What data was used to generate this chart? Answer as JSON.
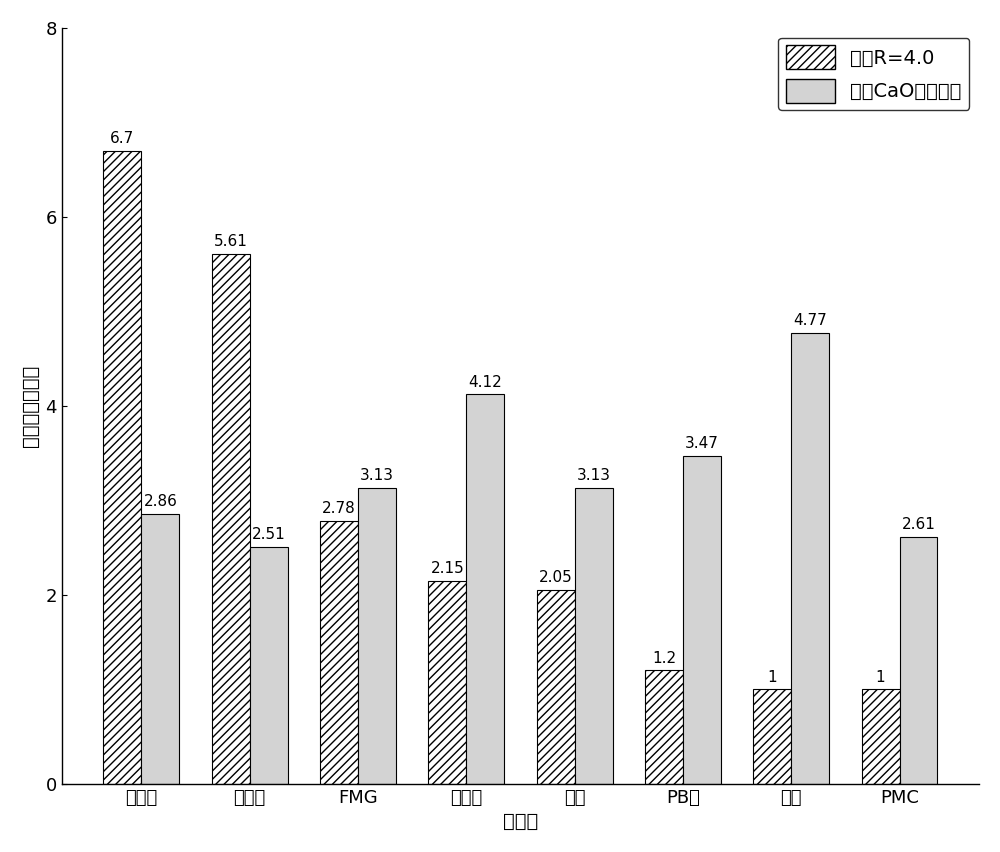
{
  "categories": [
    "一鈢粉",
    "超特粉",
    "FMG",
    "蒙古粉",
    "澳粉",
    "PB粉",
    "卡粉",
    "PMC"
  ],
  "series1_label": "固定R=4.0",
  "series2_label": "固定CaO质量分数",
  "series1_values": [
    6.7,
    5.61,
    2.78,
    2.15,
    2.05,
    1.2,
    1.0,
    1.0
  ],
  "series2_values": [
    2.86,
    2.51,
    3.13,
    4.12,
    3.13,
    3.47,
    4.77,
    2.61
  ],
  "series1_annot": [
    "6.7",
    "5.61",
    "2.78",
    "2.15",
    "2.05",
    "1.2",
    "1",
    "1"
  ],
  "series2_annot": [
    "2.86",
    "2.51",
    "3.13",
    "4.12",
    "3.13",
    "3.47",
    "4.77",
    "2.61"
  ],
  "xlabel": "铁矿粉",
  "ylabel": "液相流动性指数",
  "ylim": [
    0,
    8
  ],
  "yticks": [
    0,
    2,
    4,
    6,
    8
  ],
  "bar_width": 0.35,
  "hatch1": "////",
  "hatch2": "",
  "color1": "white",
  "color2": "#d3d3d3",
  "edgecolor": "black",
  "label_fontsize": 14,
  "tick_fontsize": 13,
  "annot_fontsize": 11
}
